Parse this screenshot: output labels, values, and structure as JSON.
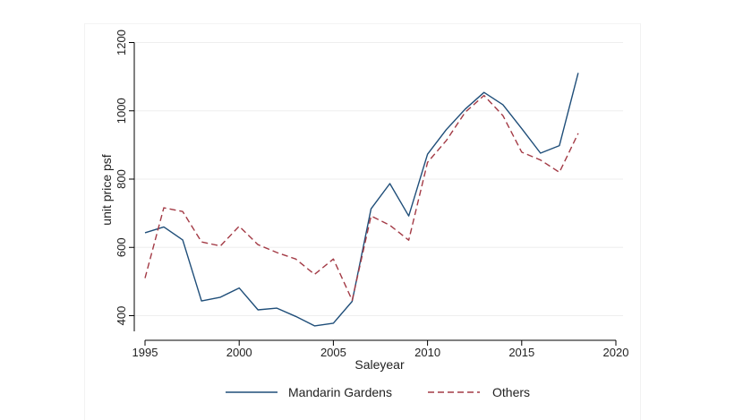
{
  "chart_data": {
    "type": "line",
    "title": "",
    "xlabel": "Saleyear",
    "ylabel": "unit price psf",
    "xlim": [
      1995,
      2020
    ],
    "ylim": [
      370,
      1210
    ],
    "x_ticks": [
      1995,
      2000,
      2005,
      2010,
      2015,
      2020
    ],
    "y_ticks": [
      400,
      600,
      800,
      1000,
      1200
    ],
    "grid": true,
    "legend_position": "bottom",
    "x": [
      1995,
      1996,
      1997,
      1998,
      1999,
      2000,
      2001,
      2002,
      2003,
      2004,
      2005,
      2006,
      2007,
      2008,
      2009,
      2010,
      2011,
      2012,
      2013,
      2014,
      2015,
      2016,
      2017,
      2018
    ],
    "series": [
      {
        "name": "Mandarin Gardens",
        "color": "#1f4e79",
        "dash": "solid",
        "values": [
          643,
          660,
          622,
          443,
          454,
          481,
          417,
          422,
          398,
          370,
          378,
          442,
          713,
          787,
          692,
          873,
          945,
          1005,
          1054,
          1018,
          948,
          876,
          898,
          1111
        ]
      },
      {
        "name": "Others",
        "color": "#a33a45",
        "dash": "dashed",
        "values": [
          510,
          716,
          705,
          616,
          604,
          662,
          608,
          585,
          566,
          521,
          566,
          445,
          692,
          665,
          621,
          849,
          913,
          996,
          1045,
          986,
          879,
          856,
          820,
          934
        ]
      }
    ]
  }
}
